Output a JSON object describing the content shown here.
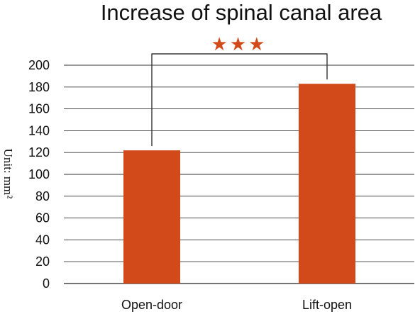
{
  "chart_data": {
    "type": "bar",
    "title": "Increase of spinal canal area",
    "ylabel": "Unit: mm²",
    "xlabel": "",
    "categories": [
      "Open-door",
      "Lift-open"
    ],
    "values": [
      122,
      183
    ],
    "ylim": [
      0,
      200
    ],
    "yticks": [
      0,
      20,
      40,
      60,
      80,
      100,
      120,
      140,
      160,
      180,
      200
    ],
    "grid": true,
    "bar_color": "#d2491a",
    "significance": {
      "between": [
        "Open-door",
        "Lift-open"
      ],
      "label": "★★★"
    }
  }
}
